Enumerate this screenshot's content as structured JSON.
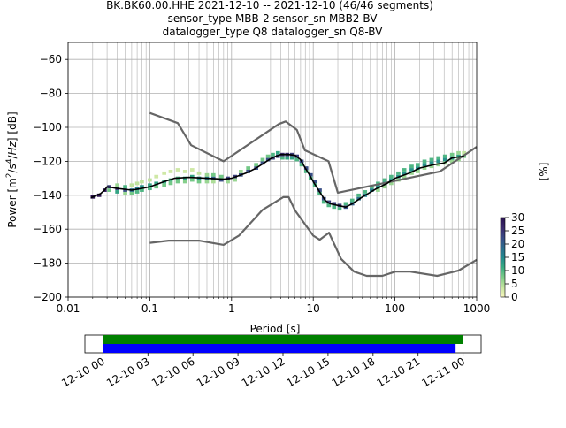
{
  "title": {
    "line1": "BK.BK60.00.HHE   2021-12-10 -- 2021-12-10  (46/46 segments)",
    "line2": "sensor_type MBB-2 sensor_sn MBB2-BV",
    "line3": "datalogger_type Q8 datalogger_sn Q8-BV"
  },
  "chart_data": [
    {
      "type": "heatmap",
      "subtype": "probabilistic-power-spectral-density",
      "xlabel": "Period [s]",
      "ylabel": "Power [m²/s⁴/Hz] [dB]",
      "xscale": "log",
      "xlim": [
        0.01,
        1000
      ],
      "ylim": [
        -200,
        -50
      ],
      "xticks": [
        0.01,
        0.1,
        1,
        10,
        100,
        1000
      ],
      "xtick_labels": [
        "0.01",
        "0.1",
        "1",
        "10",
        "100",
        "1000"
      ],
      "yticks": [
        -200,
        -180,
        -160,
        -140,
        -120,
        -100,
        -80,
        -60
      ],
      "ytick_labels": [
        "−200",
        "−180",
        "−160",
        "−140",
        "−120",
        "−100",
        "−80",
        "−60"
      ],
      "grid": true,
      "colorbar": {
        "label": "[%]",
        "range": [
          0,
          30
        ],
        "ticks": [
          "0",
          "5",
          "10",
          "15",
          "20",
          "25",
          "30"
        ],
        "colors": [
          "#f7f5bd",
          "#c5e5a0",
          "#7ccc88",
          "#38ab82",
          "#23898e",
          "#2f6a8c",
          "#3a4a85",
          "#3b2a6b",
          "#2a1250"
        ]
      },
      "mean_curve": [
        [
          0.019,
          -141.5
        ],
        [
          0.025,
          -139
        ],
        [
          0.028,
          -137
        ],
        [
          0.03,
          -135
        ],
        [
          0.04,
          -136
        ],
        [
          0.06,
          -137
        ],
        [
          0.08,
          -136
        ],
        [
          0.1,
          -135
        ],
        [
          0.15,
          -132
        ],
        [
          0.2,
          -130
        ],
        [
          0.3,
          -129.5
        ],
        [
          0.5,
          -130
        ],
        [
          0.8,
          -130.5
        ],
        [
          1.0,
          -130
        ],
        [
          1.5,
          -127
        ],
        [
          2.0,
          -124
        ],
        [
          2.5,
          -121
        ],
        [
          3.0,
          -118.5
        ],
        [
          3.5,
          -117
        ],
        [
          4.0,
          -116
        ],
        [
          5.0,
          -116
        ],
        [
          6.0,
          -116.5
        ],
        [
          7.0,
          -119
        ],
        [
          8.0,
          -124
        ],
        [
          9.0,
          -128
        ],
        [
          10.0,
          -132
        ],
        [
          12.0,
          -138
        ],
        [
          14.0,
          -143
        ],
        [
          16.0,
          -145
        ],
        [
          20.0,
          -146
        ],
        [
          25.0,
          -147
        ],
        [
          30.0,
          -145
        ],
        [
          40.0,
          -141
        ],
        [
          60.0,
          -136
        ],
        [
          80.0,
          -133
        ],
        [
          100.0,
          -130
        ],
        [
          150.0,
          -127
        ],
        [
          200.0,
          -124
        ],
        [
          300.0,
          -122
        ],
        [
          400.0,
          -121
        ],
        [
          500.0,
          -118
        ],
        [
          700.0,
          -117
        ]
      ],
      "heat_cells": [
        [
          0.02,
          -141,
          30
        ],
        [
          0.024,
          -140,
          30
        ],
        [
          0.028,
          -137,
          28
        ],
        [
          0.032,
          -135,
          24
        ],
        [
          0.032,
          -137,
          8
        ],
        [
          0.04,
          -136,
          24
        ],
        [
          0.04,
          -138,
          12
        ],
        [
          0.04,
          -134,
          6
        ],
        [
          0.05,
          -137,
          22
        ],
        [
          0.05,
          -135,
          10
        ],
        [
          0.05,
          -139,
          6
        ],
        [
          0.06,
          -137,
          18
        ],
        [
          0.06,
          -139,
          8
        ],
        [
          0.06,
          -134,
          4
        ],
        [
          0.07,
          -136,
          16
        ],
        [
          0.07,
          -138,
          10
        ],
        [
          0.07,
          -133,
          4
        ],
        [
          0.08,
          -135,
          14
        ],
        [
          0.08,
          -137,
          10
        ],
        [
          0.08,
          -132,
          4
        ],
        [
          0.1,
          -134,
          12
        ],
        [
          0.1,
          -136,
          10
        ],
        [
          0.1,
          -131,
          4
        ],
        [
          0.12,
          -133,
          12
        ],
        [
          0.12,
          -135,
          8
        ],
        [
          0.12,
          -129,
          3
        ],
        [
          0.15,
          -132,
          12
        ],
        [
          0.15,
          -134,
          8
        ],
        [
          0.15,
          -127,
          3
        ],
        [
          0.18,
          -131,
          10
        ],
        [
          0.18,
          -133,
          8
        ],
        [
          0.18,
          -126,
          3
        ],
        [
          0.22,
          -130,
          10
        ],
        [
          0.22,
          -132,
          8
        ],
        [
          0.22,
          -125,
          3
        ],
        [
          0.27,
          -130,
          12
        ],
        [
          0.27,
          -132,
          7
        ],
        [
          0.27,
          -126,
          3
        ],
        [
          0.33,
          -129,
          12
        ],
        [
          0.33,
          -131,
          8
        ],
        [
          0.33,
          -125,
          3
        ],
        [
          0.4,
          -130,
          14
        ],
        [
          0.4,
          -132,
          8
        ],
        [
          0.4,
          -127,
          4
        ],
        [
          0.5,
          -130,
          16
        ],
        [
          0.5,
          -128,
          6
        ],
        [
          0.5,
          -132,
          6
        ],
        [
          0.6,
          -130,
          20
        ],
        [
          0.6,
          -128,
          8
        ],
        [
          0.6,
          -132,
          5
        ],
        [
          0.75,
          -131,
          22
        ],
        [
          0.75,
          -129,
          8
        ],
        [
          0.9,
          -130,
          24
        ],
        [
          0.9,
          -132,
          6
        ],
        [
          1.1,
          -129,
          24
        ],
        [
          1.1,
          -131,
          6
        ],
        [
          1.3,
          -128,
          22
        ],
        [
          1.3,
          -126,
          6
        ],
        [
          1.6,
          -126,
          22
        ],
        [
          1.6,
          -124,
          8
        ],
        [
          2.0,
          -124,
          22
        ],
        [
          2.0,
          -122,
          8
        ],
        [
          2.4,
          -121,
          22
        ],
        [
          2.4,
          -119,
          8
        ],
        [
          2.8,
          -119,
          22
        ],
        [
          2.8,
          -117,
          8
        ],
        [
          3.2,
          -118,
          24
        ],
        [
          3.2,
          -116,
          10
        ],
        [
          3.7,
          -117,
          24
        ],
        [
          3.7,
          -115,
          12
        ],
        [
          4.2,
          -116,
          26
        ],
        [
          4.2,
          -118,
          10
        ],
        [
          4.8,
          -116,
          26
        ],
        [
          4.8,
          -118,
          12
        ],
        [
          5.5,
          -116,
          24
        ],
        [
          5.5,
          -118,
          12
        ],
        [
          6.3,
          -117,
          24
        ],
        [
          6.3,
          -119,
          10
        ],
        [
          7.2,
          -120,
          22
        ],
        [
          7.2,
          -122,
          10
        ],
        [
          8.2,
          -124,
          22
        ],
        [
          8.2,
          -126,
          10
        ],
        [
          9.3,
          -128,
          22
        ],
        [
          9.3,
          -130,
          10
        ],
        [
          10.5,
          -132,
          22
        ],
        [
          10.5,
          -134,
          10
        ],
        [
          12.0,
          -137,
          22
        ],
        [
          12.0,
          -139,
          10
        ],
        [
          13.5,
          -142,
          22
        ],
        [
          13.5,
          -144,
          10
        ],
        [
          15.5,
          -144,
          24
        ],
        [
          15.5,
          -146,
          10
        ],
        [
          18.0,
          -145,
          24
        ],
        [
          18.0,
          -147,
          10
        ],
        [
          21.0,
          -146,
          24
        ],
        [
          21.0,
          -148,
          10
        ],
        [
          25.0,
          -147,
          22
        ],
        [
          25.0,
          -145,
          10
        ],
        [
          30.0,
          -145,
          20
        ],
        [
          30.0,
          -143,
          10
        ],
        [
          36.0,
          -142,
          18
        ],
        [
          36.0,
          -140,
          10
        ],
        [
          43.0,
          -140,
          16
        ],
        [
          43.0,
          -138,
          10
        ],
        [
          52.0,
          -137,
          16
        ],
        [
          52.0,
          -135,
          10
        ],
        [
          62.0,
          -135,
          14
        ],
        [
          62.0,
          -133,
          10
        ],
        [
          62.0,
          -137,
          6
        ],
        [
          75.0,
          -133,
          14
        ],
        [
          75.0,
          -131,
          10
        ],
        [
          75.0,
          -135,
          6
        ],
        [
          90.0,
          -131,
          14
        ],
        [
          90.0,
          -129,
          10
        ],
        [
          90.0,
          -133,
          6
        ],
        [
          110.0,
          -129,
          14
        ],
        [
          110.0,
          -127,
          10
        ],
        [
          110.0,
          -131,
          6
        ],
        [
          130.0,
          -127,
          14
        ],
        [
          130.0,
          -125,
          10
        ],
        [
          130.0,
          -129,
          6
        ],
        [
          160.0,
          -125,
          14
        ],
        [
          160.0,
          -123,
          10
        ],
        [
          160.0,
          -127,
          6
        ],
        [
          190.0,
          -124,
          14
        ],
        [
          190.0,
          -122,
          10
        ],
        [
          190.0,
          -126,
          6
        ],
        [
          230.0,
          -122,
          14
        ],
        [
          230.0,
          -120,
          10
        ],
        [
          230.0,
          -124,
          6
        ],
        [
          280.0,
          -121,
          14
        ],
        [
          280.0,
          -119,
          10
        ],
        [
          280.0,
          -123,
          6
        ],
        [
          340.0,
          -120,
          14
        ],
        [
          340.0,
          -118,
          10
        ],
        [
          340.0,
          -122,
          6
        ],
        [
          410.0,
          -119,
          14
        ],
        [
          410.0,
          -117,
          10
        ],
        [
          410.0,
          -121,
          6
        ],
        [
          500.0,
          -118,
          14
        ],
        [
          500.0,
          -116,
          8
        ],
        [
          500.0,
          -120,
          6
        ],
        [
          600.0,
          -117,
          12
        ],
        [
          600.0,
          -115,
          6
        ],
        [
          600.0,
          -119,
          6
        ],
        [
          700.0,
          -117,
          8
        ],
        [
          700.0,
          -115,
          4
        ]
      ],
      "nhnm": [
        [
          0.1,
          -91.5
        ],
        [
          0.22,
          -97.5
        ],
        [
          0.32,
          -110.5
        ],
        [
          0.8,
          -120
        ],
        [
          3.8,
          -98
        ],
        [
          4.6,
          -96.5
        ],
        [
          6.3,
          -101.5
        ],
        [
          7.9,
          -113.5
        ],
        [
          15.4,
          -120
        ],
        [
          20.0,
          -138.5
        ],
        [
          354.8,
          -126
        ],
        [
          1000,
          -111.5
        ]
      ],
      "nlnm": [
        [
          0.1,
          -168
        ],
        [
          0.17,
          -166.7
        ],
        [
          0.4,
          -166.7
        ],
        [
          0.8,
          -169.2
        ],
        [
          1.24,
          -163.7
        ],
        [
          2.4,
          -148.6
        ],
        [
          4.3,
          -141.1
        ],
        [
          5.0,
          -141.1
        ],
        [
          6.0,
          -149
        ],
        [
          10.0,
          -163.8
        ],
        [
          12.0,
          -166.2
        ],
        [
          15.6,
          -162.1
        ],
        [
          21.9,
          -177.5
        ],
        [
          31.6,
          -185
        ],
        [
          45.0,
          -187.5
        ],
        [
          70.0,
          -187.5
        ],
        [
          101.0,
          -185
        ],
        [
          154.0,
          -185
        ],
        [
          328.0,
          -187.5
        ],
        [
          600.0,
          -184.4
        ],
        [
          1000,
          -178
        ]
      ]
    },
    {
      "type": "timeline",
      "tick_labels": [
        "12-10 00",
        "12-10 03",
        "12-10 06",
        "12-10 09",
        "12-10 12",
        "12-10 15",
        "12-10 18",
        "12-10 21",
        "12-11 00"
      ],
      "xlim_hours": [
        -1.2,
        25.2
      ],
      "bars": [
        {
          "color": "#008000",
          "start_hours": 0,
          "end_hours": 24.0
        },
        {
          "color": "#0000ff",
          "start_hours": 0,
          "end_hours": 23.5
        }
      ]
    }
  ]
}
